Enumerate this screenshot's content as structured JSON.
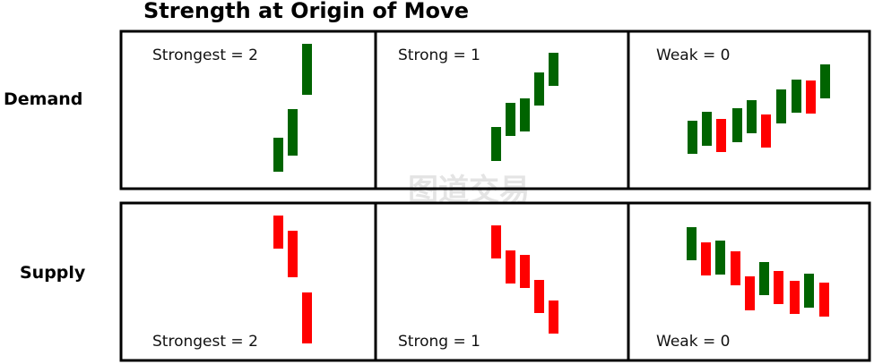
{
  "title": "Strength at Origin of Move",
  "rows": [
    {
      "label": "Demand",
      "panels": [
        {
          "label": "Strongest = 2",
          "candles": [
            "green",
            "green",
            "green"
          ]
        },
        {
          "label": "Strong = 1",
          "candles": [
            "green",
            "green",
            "green",
            "green",
            "green"
          ]
        },
        {
          "label": "Weak = 0",
          "candles": [
            "green",
            "green",
            "red",
            "green",
            "green",
            "red",
            "green",
            "green",
            "red",
            "green"
          ]
        }
      ]
    },
    {
      "label": "Supply",
      "panels": [
        {
          "label": "Strongest = 2",
          "candles": [
            "red",
            "red",
            "red"
          ]
        },
        {
          "label": "Strong = 1",
          "candles": [
            "red",
            "red",
            "red",
            "red",
            "red"
          ]
        },
        {
          "label": "Weak = 0",
          "candles": [
            "green",
            "red",
            "green",
            "red",
            "red",
            "green",
            "red",
            "red",
            "green",
            "red"
          ]
        }
      ]
    }
  ],
  "watermark": "图道交易",
  "colors": {
    "green": "#006400",
    "red": "#ff0000",
    "border": "#000000"
  }
}
